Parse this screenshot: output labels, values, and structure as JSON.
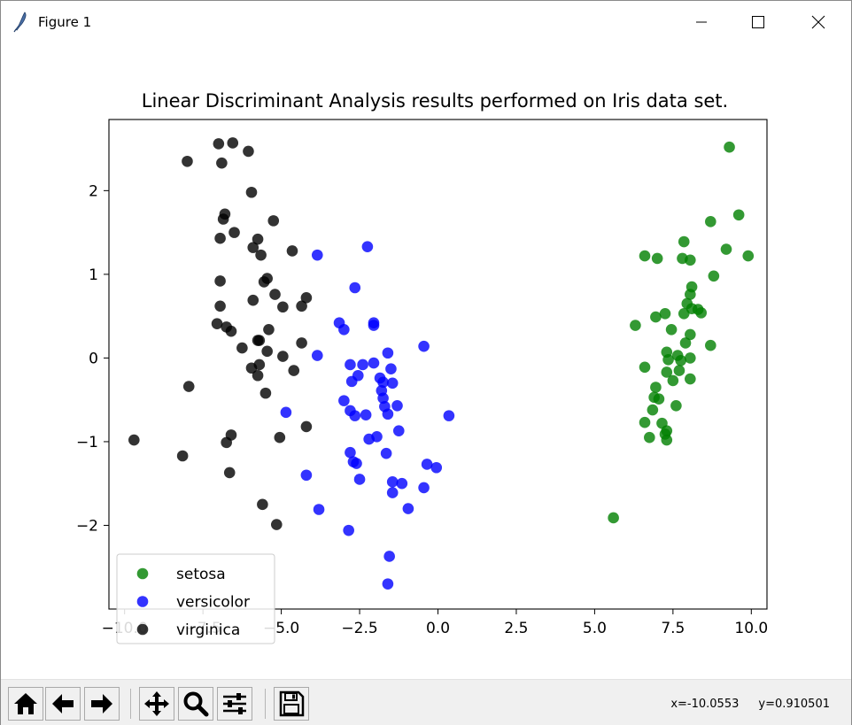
{
  "window": {
    "title": "Figure 1",
    "icons": {
      "app": "feather-icon",
      "minimize": "minimize-icon",
      "maximize": "maximize-icon",
      "close": "close-icon"
    }
  },
  "toolbar": {
    "buttons": [
      {
        "name": "home-button",
        "icon": "home-icon"
      },
      {
        "name": "back-button",
        "icon": "arrow-left-icon"
      },
      {
        "name": "forward-button",
        "icon": "arrow-right-icon"
      },
      {
        "name": "pan-button",
        "icon": "move-icon"
      },
      {
        "name": "zoom-button",
        "icon": "magnifier-icon"
      },
      {
        "name": "subplots-button",
        "icon": "sliders-icon"
      },
      {
        "name": "save-button",
        "icon": "floppy-disk-icon"
      }
    ],
    "x_readout": "x=-10.0553",
    "y_readout": "y=0.910501"
  },
  "chart_data": {
    "type": "scatter",
    "title": "Linear Discriminant Analysis results performed on Iris data set.",
    "xlabel": "",
    "ylabel": "",
    "xlim": [
      -10.5,
      10.5
    ],
    "ylim": [
      -3.0,
      2.85
    ],
    "xticks": [
      -10.0,
      -7.5,
      -5.0,
      -2.5,
      0.0,
      2.5,
      5.0,
      7.5,
      10.0
    ],
    "xtick_labels": [
      "−10.0",
      "−7.5",
      "−5.0",
      "−2.5",
      "0.0",
      "2.5",
      "5.0",
      "7.5",
      "10.0"
    ],
    "yticks": [
      -2,
      -1,
      0,
      1,
      2
    ],
    "ytick_labels": [
      "−2",
      "−1",
      "0",
      "1",
      "2"
    ],
    "grid": false,
    "legend_position": "lower-left",
    "series": [
      {
        "name": "setosa",
        "color": "#008000",
        "points": [
          [
            9.3,
            2.52
          ],
          [
            8.7,
            1.63
          ],
          [
            9.6,
            1.71
          ],
          [
            7.85,
            1.39
          ],
          [
            9.2,
            1.3
          ],
          [
            9.9,
            1.22
          ],
          [
            6.6,
            1.22
          ],
          [
            7.0,
            1.19
          ],
          [
            7.8,
            1.19
          ],
          [
            8.05,
            1.17
          ],
          [
            8.8,
            0.98
          ],
          [
            8.1,
            0.85
          ],
          [
            8.05,
            0.76
          ],
          [
            7.95,
            0.65
          ],
          [
            8.1,
            0.59
          ],
          [
            8.3,
            0.58
          ],
          [
            8.4,
            0.54
          ],
          [
            7.85,
            0.53
          ],
          [
            7.25,
            0.53
          ],
          [
            6.95,
            0.49
          ],
          [
            6.3,
            0.39
          ],
          [
            7.45,
            0.34
          ],
          [
            8.05,
            0.28
          ],
          [
            7.9,
            0.18
          ],
          [
            8.7,
            0.15
          ],
          [
            7.3,
            0.07
          ],
          [
            7.65,
            0.03
          ],
          [
            7.35,
            -0.02
          ],
          [
            7.75,
            -0.03
          ],
          [
            8.05,
            0.0
          ],
          [
            6.6,
            -0.11
          ],
          [
            7.3,
            -0.17
          ],
          [
            7.7,
            -0.15
          ],
          [
            7.5,
            -0.27
          ],
          [
            8.05,
            -0.25
          ],
          [
            6.95,
            -0.35
          ],
          [
            6.9,
            -0.47
          ],
          [
            7.05,
            -0.49
          ],
          [
            7.6,
            -0.57
          ],
          [
            6.85,
            -0.62
          ],
          [
            6.6,
            -0.77
          ],
          [
            7.15,
            -0.78
          ],
          [
            7.3,
            -0.87
          ],
          [
            7.25,
            -0.91
          ],
          [
            6.75,
            -0.95
          ],
          [
            7.3,
            -0.98
          ],
          [
            5.6,
            -1.91
          ]
        ]
      },
      {
        "name": "versicolor",
        "color": "#0000ff",
        "points": [
          [
            -3.85,
            1.23
          ],
          [
            -2.25,
            1.33
          ],
          [
            -2.65,
            0.84
          ],
          [
            -3.15,
            0.42
          ],
          [
            -2.05,
            0.42
          ],
          [
            -3.0,
            0.34
          ],
          [
            -2.05,
            0.39
          ],
          [
            -3.85,
            0.03
          ],
          [
            -0.45,
            0.14
          ],
          [
            -1.6,
            0.06
          ],
          [
            -2.8,
            -0.08
          ],
          [
            -2.4,
            -0.08
          ],
          [
            -2.05,
            -0.06
          ],
          [
            -1.5,
            -0.13
          ],
          [
            -2.55,
            -0.21
          ],
          [
            -1.85,
            -0.24
          ],
          [
            -1.75,
            -0.29
          ],
          [
            -1.45,
            -0.3
          ],
          [
            -2.75,
            -0.28
          ],
          [
            -1.8,
            -0.39
          ],
          [
            -1.75,
            -0.48
          ],
          [
            -3.0,
            -0.51
          ],
          [
            -2.8,
            -0.63
          ],
          [
            -1.7,
            -0.58
          ],
          [
            -1.3,
            -0.57
          ],
          [
            -4.85,
            -0.65
          ],
          [
            -2.3,
            -0.68
          ],
          [
            -2.65,
            -0.69
          ],
          [
            -1.6,
            -0.67
          ],
          [
            0.35,
            -0.69
          ],
          [
            -1.25,
            -0.87
          ],
          [
            -2.2,
            -0.97
          ],
          [
            -1.95,
            -0.94
          ],
          [
            -2.8,
            -1.13
          ],
          [
            -1.65,
            -1.14
          ],
          [
            -2.7,
            -1.24
          ],
          [
            -2.6,
            -1.26
          ],
          [
            -0.35,
            -1.27
          ],
          [
            -0.05,
            -1.31
          ],
          [
            -4.2,
            -1.4
          ],
          [
            -2.5,
            -1.45
          ],
          [
            -1.45,
            -1.48
          ],
          [
            -1.15,
            -1.5
          ],
          [
            -0.45,
            -1.55
          ],
          [
            -1.45,
            -1.61
          ],
          [
            -3.8,
            -1.81
          ],
          [
            -0.95,
            -1.8
          ],
          [
            -2.85,
            -2.06
          ],
          [
            -1.55,
            -2.37
          ],
          [
            -1.6,
            -2.7
          ]
        ]
      },
      {
        "name": "virginica",
        "color": "#000000",
        "points": [
          [
            -7.0,
            2.56
          ],
          [
            -6.55,
            2.57
          ],
          [
            -6.9,
            2.33
          ],
          [
            -8.0,
            2.35
          ],
          [
            -6.05,
            2.47
          ],
          [
            -5.95,
            1.98
          ],
          [
            -6.8,
            1.72
          ],
          [
            -6.85,
            1.66
          ],
          [
            -5.25,
            1.64
          ],
          [
            -6.5,
            1.5
          ],
          [
            -5.75,
            1.42
          ],
          [
            -6.95,
            1.43
          ],
          [
            -5.9,
            1.32
          ],
          [
            -5.65,
            1.23
          ],
          [
            -4.65,
            1.28
          ],
          [
            -6.95,
            0.92
          ],
          [
            -5.45,
            0.95
          ],
          [
            -5.55,
            0.91
          ],
          [
            -5.2,
            0.76
          ],
          [
            -4.2,
            0.72
          ],
          [
            -5.9,
            0.69
          ],
          [
            -6.95,
            0.62
          ],
          [
            -4.95,
            0.61
          ],
          [
            -4.35,
            0.62
          ],
          [
            -7.05,
            0.41
          ],
          [
            -6.75,
            0.37
          ],
          [
            -6.6,
            0.32
          ],
          [
            -5.4,
            0.34
          ],
          [
            -5.7,
            0.21
          ],
          [
            -5.75,
            0.21
          ],
          [
            -4.35,
            0.18
          ],
          [
            -6.25,
            0.12
          ],
          [
            -5.45,
            0.08
          ],
          [
            -4.95,
            0.02
          ],
          [
            -5.7,
            -0.08
          ],
          [
            -5.95,
            -0.12
          ],
          [
            -4.6,
            -0.15
          ],
          [
            -5.75,
            -0.21
          ],
          [
            -7.95,
            -0.34
          ],
          [
            -5.5,
            -0.42
          ],
          [
            -4.2,
            -0.82
          ],
          [
            -6.6,
            -0.92
          ],
          [
            -5.05,
            -0.95
          ],
          [
            -6.75,
            -1.01
          ],
          [
            -9.7,
            -0.98
          ],
          [
            -8.15,
            -1.17
          ],
          [
            -6.65,
            -1.37
          ],
          [
            -5.6,
            -1.75
          ],
          [
            -5.15,
            -1.99
          ]
        ]
      }
    ]
  }
}
